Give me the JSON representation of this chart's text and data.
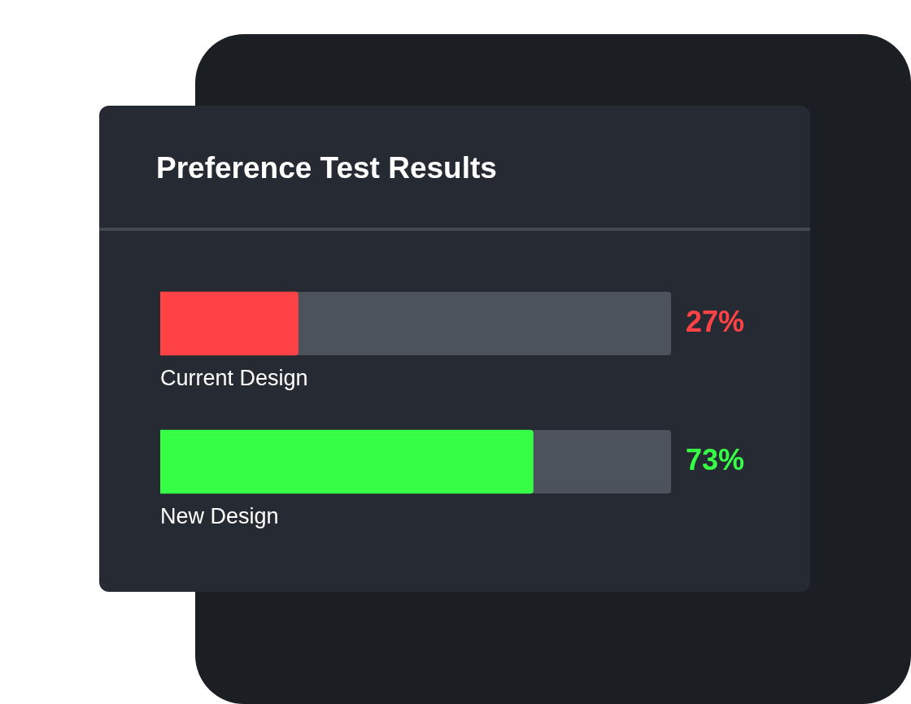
{
  "chart_data": {
    "type": "bar",
    "orientation": "horizontal",
    "title": "Preference Test Results",
    "categories": [
      "Current Design",
      "New Design"
    ],
    "values": [
      27,
      73
    ],
    "colors": [
      "#ff4245",
      "#36ff45"
    ],
    "value_labels": [
      "27%",
      "73%"
    ],
    "xlim": [
      0,
      100
    ],
    "legend": false
  }
}
